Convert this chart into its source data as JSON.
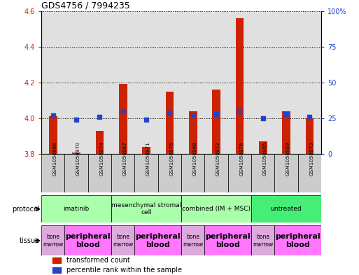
{
  "title": "GDS4756 / 7994235",
  "samples": [
    "GSM1058966",
    "GSM1058970",
    "GSM1058974",
    "GSM1058967",
    "GSM1058971",
    "GSM1058975",
    "GSM1058968",
    "GSM1058972",
    "GSM1058976",
    "GSM1058965",
    "GSM1058969",
    "GSM1058973"
  ],
  "red_values": [
    4.01,
    3.81,
    3.93,
    4.19,
    3.84,
    4.15,
    4.04,
    4.16,
    4.56,
    3.87,
    4.04,
    4.0
  ],
  "blue_pct": [
    27,
    24,
    26,
    30,
    24,
    29,
    27,
    28,
    30,
    25,
    28,
    26
  ],
  "y_min": 3.8,
  "y_max": 4.6,
  "y_ticks_left": [
    3.8,
    4.0,
    4.2,
    4.4,
    4.6
  ],
  "y_ticks_right": [
    0,
    25,
    50,
    75,
    100
  ],
  "protocol_groups": [
    {
      "label": "imatinib",
      "start": 0,
      "end": 3,
      "color": "#aaffaa"
    },
    {
      "label": "mesenchymal stromal\ncell",
      "start": 3,
      "end": 6,
      "color": "#aaffaa"
    },
    {
      "label": "combined (IM + MSC)",
      "start": 6,
      "end": 9,
      "color": "#aaffaa"
    },
    {
      "label": "untreated",
      "start": 9,
      "end": 12,
      "color": "#44ee77"
    }
  ],
  "tissue_groups": [
    {
      "label": "bone\nmarrow",
      "start": 0,
      "end": 1,
      "color": "#ddaadd"
    },
    {
      "label": "peripheral\nblood",
      "start": 1,
      "end": 3,
      "color": "#ff77ff"
    },
    {
      "label": "bone\nmarrow",
      "start": 3,
      "end": 4,
      "color": "#ddaadd"
    },
    {
      "label": "peripheral\nblood",
      "start": 4,
      "end": 6,
      "color": "#ff77ff"
    },
    {
      "label": "bone\nmarrow",
      "start": 6,
      "end": 7,
      "color": "#ddaadd"
    },
    {
      "label": "peripheral\nblood",
      "start": 7,
      "end": 9,
      "color": "#ff77ff"
    },
    {
      "label": "bone\nmarrow",
      "start": 9,
      "end": 10,
      "color": "#ddaadd"
    },
    {
      "label": "peripheral\nblood",
      "start": 10,
      "end": 12,
      "color": "#ff77ff"
    }
  ],
  "bar_color": "#cc2200",
  "dot_color": "#2244cc",
  "baseline": 3.8,
  "bg_color": "#ffffff",
  "tick_color_left": "#cc2200",
  "tick_color_right": "#2244cc",
  "sample_box_color": "#cccccc",
  "figsize": [
    5.13,
    3.93
  ],
  "dpi": 100
}
